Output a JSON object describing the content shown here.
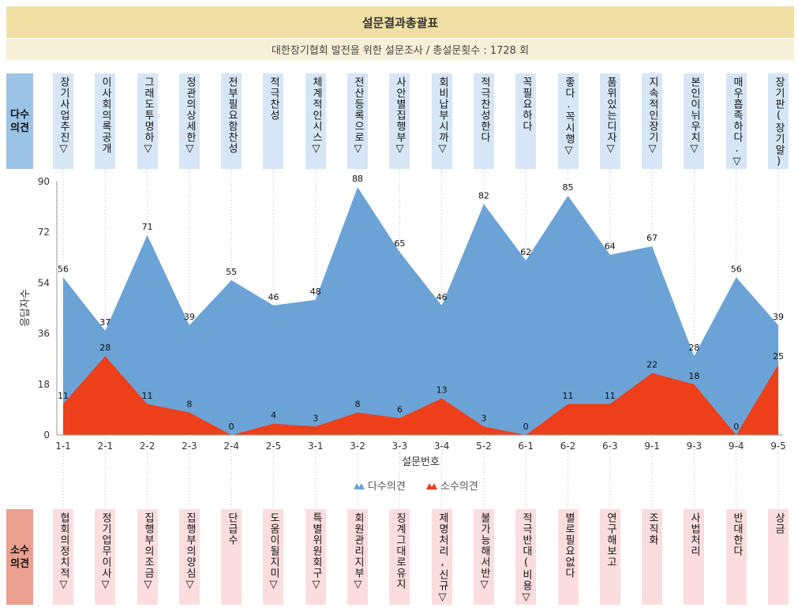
{
  "header": {
    "title": "설문결과총괄표",
    "subtitle": "대한장기협회 발전을 위한 설문조사 / 총설문횟수 : 1728 회"
  },
  "labels": {
    "majority_row": "다수\n의견",
    "minority_row": "소수\n의견"
  },
  "majority_opinions": [
    "장기사업추진▽",
    "이사회의록공개",
    "그래도투명하▽",
    "정관의상세한▽",
    "전부필요함찬성",
    "적극찬성",
    "체계적인시스▽",
    "전산등록으로▽",
    "사안별집행부▽",
    "회비납부시까▽",
    "적극찬성한다",
    "꼭필요하다",
    "좋다.꼭시행▽",
    "품위있는디자▽",
    "지속적인장기▽",
    "본인이뉘우치▽",
    "매우흡족하다.▽",
    "장기판(장기알)"
  ],
  "minority_opinions": [
    "협회의정치적▽",
    "정기업무이사▽",
    "집행부의조금▽",
    "집행부의양심▽",
    "단급수",
    "도움이될지미▽",
    "특별위원회구▽",
    "회원관리지부▽",
    "징계그대로유지",
    "제명처리,신규▽",
    "불가능해서반▽",
    "적극반대(비용▽",
    "별로필요없다",
    "연구해보고",
    "조직화",
    "사법처리",
    "반대한다",
    "상금"
  ],
  "colors": {
    "majority": "#6ca3d6",
    "minority": "#ec3f1a",
    "title_bg": "#efdfa2",
    "subtitle_bg": "#f8efd8"
  },
  "chart_data": {
    "type": "area",
    "xlabel": "설문번호",
    "ylabel": "응답자수",
    "ylim": [
      0,
      90
    ],
    "yticks": [
      0,
      18,
      36,
      54,
      72,
      90
    ],
    "grid": "vertical dotted",
    "legend_position": "bottom-center",
    "categories": [
      "1-1",
      "2-1",
      "2-2",
      "2-3",
      "2-4",
      "2-5",
      "3-1",
      "3-2",
      "3-3",
      "3-4",
      "5-2",
      "6-1",
      "6-2",
      "6-3",
      "9-1",
      "9-3",
      "9-4",
      "9-5"
    ],
    "series": [
      {
        "name": "다수의견",
        "color": "#6ca3d6",
        "values": [
          56,
          37,
          71,
          39,
          55,
          46,
          48,
          88,
          65,
          46,
          82,
          62,
          85,
          64,
          67,
          28,
          56,
          39
        ]
      },
      {
        "name": "소수의견",
        "color": "#ec3f1a",
        "values": [
          11,
          28,
          11,
          8,
          0,
          4,
          3,
          8,
          6,
          13,
          3,
          0,
          11,
          11,
          22,
          18,
          0,
          25
        ]
      }
    ]
  }
}
